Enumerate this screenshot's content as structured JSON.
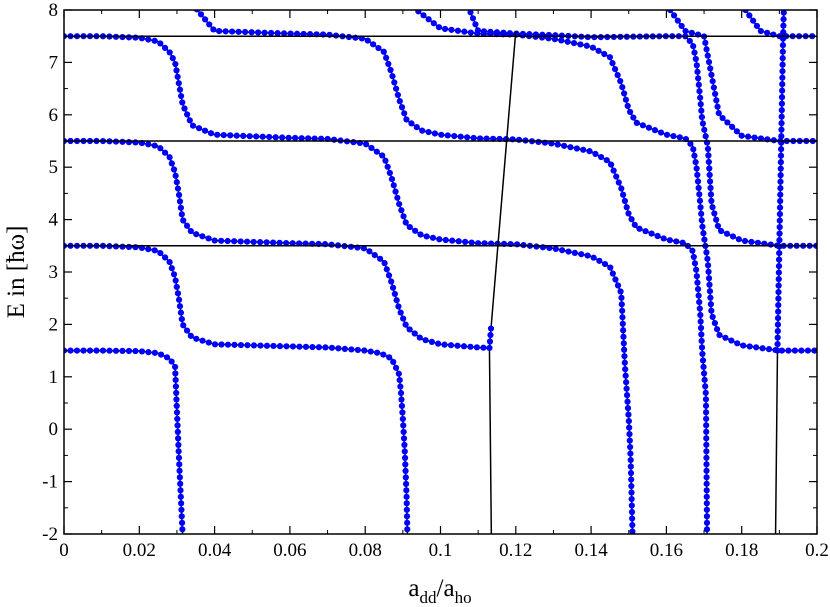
{
  "chart_data": {
    "type": "line",
    "title": "",
    "xlabel_main": "a",
    "xlabel_sub1": "dd",
    "xlabel_slash": "/a",
    "xlabel_sub2": "ho",
    "ylabel": "E in [ħω]",
    "xlim": [
      0,
      0.2
    ],
    "ylim": [
      -2,
      8
    ],
    "x_ticks": [
      0,
      0.02,
      0.04,
      0.06,
      0.08,
      0.1,
      0.12,
      0.14,
      0.16,
      0.18,
      0.2
    ],
    "y_ticks": [
      -2,
      -1,
      0,
      1,
      2,
      3,
      4,
      5,
      6,
      7,
      8
    ],
    "x_tick_labels": [
      "0",
      "0.02",
      "0.04",
      "0.06",
      "0.08",
      "0.1",
      "0.12",
      "0.14",
      "0.16",
      "0.18",
      "0.2"
    ],
    "y_tick_labels": [
      "-2",
      "-1",
      "0",
      "1",
      "2",
      "3",
      "4",
      "5",
      "6",
      "7",
      "8"
    ],
    "grid": false,
    "line_color": "#000000",
    "marker_color": "#0000ff",
    "series": [
      {
        "values": [
          [
            0,
            1.5
          ],
          [
            0.01,
            1.5
          ],
          [
            0.02,
            1.49
          ],
          [
            0.025,
            1.45
          ],
          [
            0.028,
            1.35
          ],
          [
            0.0295,
            1.2
          ],
          [
            0.0305,
            -0.5
          ],
          [
            0.0315,
            -2
          ]
        ]
      },
      {
        "values": [
          [
            0,
            3.5
          ],
          [
            0.01,
            3.5
          ],
          [
            0.02,
            3.47
          ],
          [
            0.025,
            3.4
          ],
          [
            0.028,
            3.2
          ],
          [
            0.0295,
            2.9
          ],
          [
            0.0305,
            2.5
          ],
          [
            0.0315,
            2.0
          ],
          [
            0.034,
            1.75
          ],
          [
            0.04,
            1.62
          ],
          [
            0.06,
            1.58
          ],
          [
            0.07,
            1.56
          ],
          [
            0.08,
            1.5
          ],
          [
            0.084,
            1.45
          ],
          [
            0.087,
            1.35
          ],
          [
            0.089,
            1.05
          ],
          [
            0.0895,
            0.7
          ],
          [
            0.09,
            0.2
          ],
          [
            0.0905,
            -0.4
          ],
          [
            0.091,
            -1.3
          ],
          [
            0.0912,
            -2
          ]
        ]
      },
      {
        "values": [
          [
            0,
            5.5
          ],
          [
            0.01,
            5.5
          ],
          [
            0.02,
            5.47
          ],
          [
            0.025,
            5.4
          ],
          [
            0.028,
            5.2
          ],
          [
            0.0295,
            4.9
          ],
          [
            0.0305,
            4.5
          ],
          [
            0.0315,
            4.0
          ],
          [
            0.034,
            3.75
          ],
          [
            0.04,
            3.6
          ],
          [
            0.06,
            3.55
          ],
          [
            0.07,
            3.53
          ],
          [
            0.08,
            3.45
          ],
          [
            0.085,
            3.2
          ],
          [
            0.087,
            2.8
          ],
          [
            0.089,
            2.3
          ],
          [
            0.091,
            1.95
          ],
          [
            0.095,
            1.72
          ],
          [
            0.1,
            1.62
          ],
          [
            0.11,
            1.56
          ],
          [
            0.113,
            1.55
          ],
          [
            0.1135,
            -2
          ]
        ]
      },
      {
        "values": [
          [
            0,
            7.5
          ],
          [
            0.01,
            7.5
          ],
          [
            0.02,
            7.47
          ],
          [
            0.025,
            7.4
          ],
          [
            0.028,
            7.2
          ],
          [
            0.0295,
            7.0
          ],
          [
            0.0305,
            6.6
          ],
          [
            0.0315,
            6.2
          ],
          [
            0.034,
            5.8
          ],
          [
            0.04,
            5.62
          ],
          [
            0.06,
            5.56
          ],
          [
            0.07,
            5.54
          ],
          [
            0.08,
            5.45
          ],
          [
            0.085,
            5.2
          ],
          [
            0.087,
            4.8
          ],
          [
            0.089,
            4.3
          ],
          [
            0.091,
            3.9
          ],
          [
            0.095,
            3.7
          ],
          [
            0.1,
            3.62
          ],
          [
            0.11,
            3.55
          ],
          [
            0.12,
            3.53
          ],
          [
            0.13,
            3.45
          ],
          [
            0.14,
            3.3
          ],
          [
            0.145,
            3.1
          ],
          [
            0.148,
            2.6
          ],
          [
            0.149,
            1.2
          ],
          [
            0.15,
            0.2
          ],
          [
            0.1505,
            -0.55
          ],
          [
            0.151,
            -2
          ]
        ]
      },
      {
        "values": [
          [
            0.032,
            8.3
          ],
          [
            0.04,
            7.6
          ],
          [
            0.06,
            7.55
          ],
          [
            0.07,
            7.53
          ],
          [
            0.08,
            7.45
          ],
          [
            0.085,
            7.2
          ],
          [
            0.087,
            6.8
          ],
          [
            0.089,
            6.3
          ],
          [
            0.091,
            5.9
          ],
          [
            0.095,
            5.7
          ],
          [
            0.1,
            5.62
          ],
          [
            0.11,
            5.55
          ],
          [
            0.12,
            5.53
          ],
          [
            0.13,
            5.45
          ],
          [
            0.14,
            5.3
          ],
          [
            0.145,
            5.1
          ],
          [
            0.148,
            4.6
          ],
          [
            0.15,
            4.1
          ],
          [
            0.152,
            3.85
          ],
          [
            0.16,
            3.62
          ],
          [
            0.165,
            3.55
          ],
          [
            0.167,
            3.4
          ],
          [
            0.168,
            3.0
          ],
          [
            0.169,
            2.2
          ],
          [
            0.1695,
            1.5
          ],
          [
            0.1705,
            0.65
          ],
          [
            0.1708,
            -2
          ]
        ]
      },
      {
        "values": [
          [
            0.09,
            8.2
          ],
          [
            0.1,
            7.65
          ],
          [
            0.11,
            7.55
          ],
          [
            0.12,
            7.53
          ],
          [
            0.13,
            7.45
          ],
          [
            0.14,
            7.3
          ],
          [
            0.145,
            7.1
          ],
          [
            0.148,
            6.6
          ],
          [
            0.15,
            6.1
          ],
          [
            0.152,
            5.85
          ],
          [
            0.16,
            5.62
          ],
          [
            0.165,
            5.55
          ],
          [
            0.167,
            5.4
          ],
          [
            0.168,
            5.0
          ],
          [
            0.169,
            4.3
          ],
          [
            0.1695,
            3.9
          ],
          [
            0.171,
            3.2
          ],
          [
            0.172,
            2.2
          ],
          [
            0.174,
            1.8
          ],
          [
            0.18,
            1.6
          ],
          [
            0.185,
            1.55
          ],
          [
            0.19,
            1.5
          ],
          [
            0.2,
            1.5
          ]
        ]
      },
      {
        "values": [
          [
            0.106,
            8.3
          ],
          [
            0.11,
            7.6
          ],
          [
            0.12,
            7.55
          ],
          [
            0.13,
            7.52
          ],
          [
            0.14,
            7.48
          ],
          [
            0.15,
            7.49
          ],
          [
            0.16,
            7.5
          ],
          [
            0.165,
            7.5
          ],
          [
            0.167,
            7.35
          ],
          [
            0.168,
            7.0
          ],
          [
            0.169,
            6.3
          ],
          [
            0.1695,
            5.9
          ],
          [
            0.171,
            5.4
          ],
          [
            0.172,
            4.3
          ],
          [
            0.174,
            3.8
          ],
          [
            0.18,
            3.6
          ],
          [
            0.185,
            3.55
          ],
          [
            0.19,
            3.5
          ],
          [
            0.2,
            3.5
          ]
        ]
      },
      {
        "values": [
          [
            0.113,
            1.55
          ],
          [
            0.1135,
            2.0
          ],
          [
            0.12,
            7.6
          ]
        ]
      },
      {
        "values": [
          [
            0.158,
            8.3
          ],
          [
            0.165,
            7.6
          ],
          [
            0.17,
            7.5
          ],
          [
            0.174,
            6.0
          ],
          [
            0.18,
            5.6
          ],
          [
            0.185,
            5.55
          ],
          [
            0.19,
            5.5
          ],
          [
            0.2,
            5.5
          ]
        ]
      },
      {
        "values": [
          [
            0.178,
            8.3
          ],
          [
            0.185,
            7.6
          ],
          [
            0.19,
            7.5
          ],
          [
            0.2,
            7.5
          ]
        ]
      },
      {
        "values": [
          [
            0.189,
            -2
          ],
          [
            0.1895,
            1.5
          ],
          [
            0.19,
            3.5
          ],
          [
            0.1905,
            5.5
          ],
          [
            0.191,
            7.5
          ],
          [
            0.1913,
            8.3
          ]
        ]
      },
      {
        "values": [
          [
            0,
            7.5
          ],
          [
            0.2,
            7.5
          ]
        ]
      },
      {
        "values": [
          [
            0,
            5.5
          ],
          [
            0.2,
            5.5
          ]
        ]
      },
      {
        "values": [
          [
            0,
            3.5
          ],
          [
            0.2,
            3.5
          ]
        ]
      }
    ]
  }
}
